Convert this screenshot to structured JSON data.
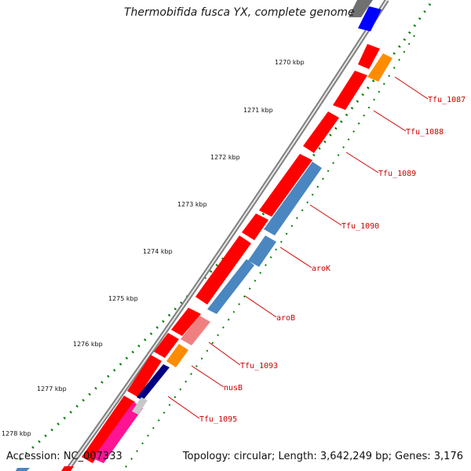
{
  "header": {
    "title": "Thermobifida fusca YX, complete genome"
  },
  "footer": {
    "accession": "Accession: NC_007333",
    "topology": "Topology: circular; Length: 3,642,249 bp; Genes: 3,176"
  },
  "colors": {
    "forward_gene": "#ff0000",
    "reverse_gene": "#4a86c0",
    "trna": "#ff8c00",
    "pink": "#ff1493",
    "light_red": "#f08080",
    "navy": "#000080",
    "backbone": "#808080",
    "tick": "#008000",
    "label": "#cc0000"
  },
  "kbp_ticks": [
    "1270 kbp",
    "1271 kbp",
    "1272 kbp",
    "1273 kbp",
    "1274 kbp",
    "1275 kbp",
    "1276 kbp",
    "1277 kbp",
    "1278 kbp"
  ],
  "gene_labels": [
    "Tfu_1087",
    "Tfu_1088",
    "Tfu_1089",
    "Tfu_1090",
    "aroK",
    "aroB",
    "Tfu_1093",
    "nusB",
    "Tfu_1095"
  ]
}
